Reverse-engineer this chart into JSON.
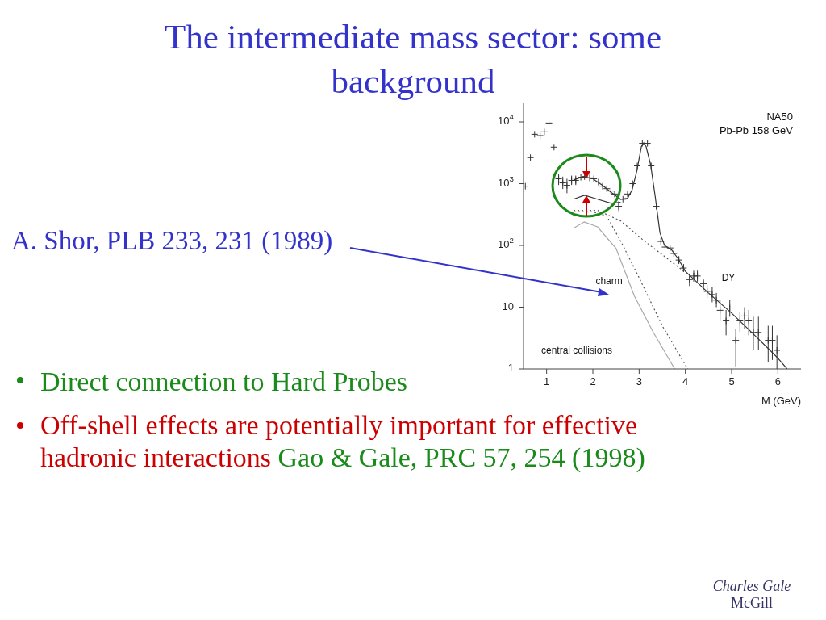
{
  "chart_data": {
    "type": "scatter",
    "title": "The intermediate mass sector: some background",
    "xlabel": "M (GeV)",
    "xlim": [
      0.5,
      6.5
    ],
    "xticks": [
      1,
      2,
      3,
      4,
      5,
      6
    ],
    "ylim": [
      1,
      20000
    ],
    "log": true,
    "yticks": [
      1,
      10,
      {
        "value": 100,
        "label": "10$^{2}$"
      },
      {
        "value": 1000,
        "label": "10$^{3}$"
      },
      {
        "value": 10000,
        "label": "10$^{4}$"
      }
    ],
    "marker": "cross",
    "series": [
      {
        "color": "#333333",
        "x": [
          0.54,
          0.65,
          0.74,
          0.86,
          0.95,
          1.05,
          1.16,
          1.26,
          1.35,
          1.44,
          1.54,
          1.63,
          1.74,
          1.82,
          1.93,
          2.02,
          2.12,
          2.21,
          2.3,
          2.39,
          2.47,
          2.56,
          2.65,
          2.75,
          2.86,
          2.96,
          3.07,
          3.18,
          3.26,
          3.37,
          3.47,
          3.56,
          3.67,
          3.75,
          3.86,
          3.96,
          4.09,
          4.18,
          4.26,
          4.39,
          4.47,
          4.58,
          4.67,
          4.75,
          4.88,
          4.96,
          5.09,
          5.18,
          5.28,
          5.37,
          5.47,
          5.58,
          5.79,
          5.88,
          5.98
        ],
        "values": [
          910,
          2640,
          6300,
          6000,
          6900,
          9600,
          3900,
          1200,
          1030,
          940,
          1130,
          1130,
          1270,
          1300,
          1240,
          1200,
          1060,
          910,
          830,
          760,
          680,
          430,
          560,
          680,
          1000,
          1940,
          4500,
          4500,
          1940,
          430,
          116,
          94,
          91,
          74,
          58,
          43,
          28,
          32,
          32,
          24,
          18,
          16,
          13,
          8.9,
          6,
          9.7,
          2.9,
          6,
          7.2,
          6,
          3.9,
          3.9,
          2.9,
          2.9,
          2
        ],
        "errors": [
          null,
          null,
          null,
          null,
          null,
          null,
          null,
          [
            950,
            1450
          ],
          [
            820,
            1300
          ],
          [
            700,
            1200
          ],
          [
            950,
            1350
          ],
          [
            950,
            1350
          ],
          null,
          null,
          null,
          null,
          null,
          null,
          null,
          null,
          null,
          [
            360,
            520
          ],
          null,
          null,
          null,
          null,
          null,
          null,
          null,
          null,
          null,
          null,
          null,
          null,
          [
            50,
            67
          ],
          [
            37,
            50
          ],
          [
            22,
            35
          ],
          [
            26,
            39
          ],
          [
            26,
            39
          ],
          [
            19,
            29
          ],
          [
            14,
            23
          ],
          [
            12,
            21
          ],
          [
            10,
            17
          ],
          [
            6,
            13
          ],
          [
            3.5,
            9
          ],
          [
            7,
            13
          ],
          [
            1.1,
            4.5
          ],
          [
            4,
            8.5
          ],
          [
            4.5,
            10
          ],
          [
            3.5,
            9
          ],
          [
            2,
            7
          ],
          [
            2,
            7
          ],
          [
            1.3,
            5
          ],
          [
            1.4,
            5
          ],
          [
            1,
            3.5
          ]
        ]
      },
      {
        "type": "line",
        "marker": "none",
        "color": "#333333",
        "line_style": "solid",
        "x": [
          1.58,
          1.8,
          2.0,
          2.2,
          2.4,
          2.6,
          2.75,
          2.85,
          2.95,
          3.05,
          3.1,
          3.15,
          3.25,
          3.35,
          3.45,
          3.55,
          3.7,
          3.85,
          4.0,
          4.5,
          5.0,
          5.5,
          6.0,
          6.2
        ],
        "values": [
          1150,
          1300,
          1200,
          950,
          720,
          560,
          580,
          800,
          1600,
          4000,
          4600,
          4000,
          2000,
          600,
          160,
          100,
          85,
          60,
          38,
          17,
          8,
          3.5,
          1.5,
          1
        ]
      },
      {
        "type": "line",
        "marker": "none",
        "color": "#333333",
        "line_style": "solid",
        "x": [
          1.58,
          1.82,
          2.1,
          2.4,
          2.6
        ],
        "values": [
          560,
          650,
          560,
          480,
          500
        ]
      },
      {
        "type": "line",
        "marker": "none",
        "color": "#555555",
        "line_style": "dotted",
        "x": [
          1.58,
          2.1,
          2.6,
          3.1,
          3.6,
          4.05
        ],
        "values": [
          370,
          370,
          250,
          120,
          62,
          34
        ]
      },
      {
        "type": "line",
        "marker": "none",
        "color": "#555555",
        "line_style": "dotted",
        "x": [
          1.6,
          2.0,
          2.3,
          2.65,
          3.0,
          3.5,
          4.05
        ],
        "values": [
          350,
          350,
          300,
          100,
          30,
          5,
          1
        ]
      },
      {
        "type": "line",
        "marker": "none",
        "color": "#aaaaaa",
        "line_style": "solid",
        "x": [
          1.58,
          1.81,
          2.1,
          2.5,
          2.9,
          3.3,
          3.77
        ],
        "values": [
          190,
          240,
          200,
          90,
          15,
          4,
          1
        ]
      }
    ],
    "annotations": [
      "A. Shor, PLB 233, 231 (1989)",
      "Direct connection to Hard Probes",
      "Off-shell effects are potentially important for effective hadronic interactions",
      "Gao & Gale, PRC 57, 254 (1998)",
      "NA50",
      "Pb-Pb 158 GeV",
      "charm",
      "DY",
      "central collisions",
      "Charles Gale",
      "McGill"
    ]
  }
}
